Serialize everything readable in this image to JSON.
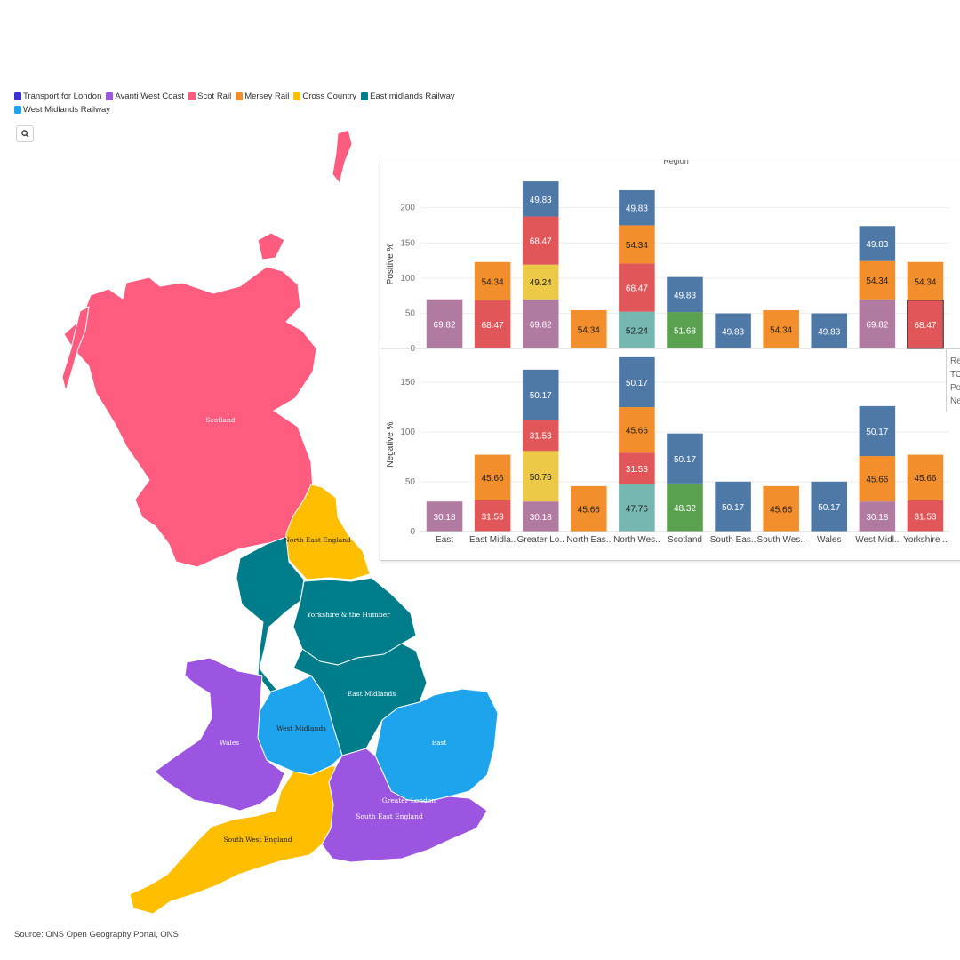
{
  "legend": [
    {
      "label": "Transport for London",
      "color": "#3b2fd9"
    },
    {
      "label": "Avanti West Coast",
      "color": "#9b55e0"
    },
    {
      "label": "Scot Rail",
      "color": "#ff5c7f"
    },
    {
      "label": "Mersey Rail",
      "color": "#f28e2b"
    },
    {
      "label": "Cross Country",
      "color": "#ffbf00"
    },
    {
      "label": "East midlands Railway",
      "color": "#007d8a"
    },
    {
      "label": "West Midlands Railway",
      "color": "#1ea4ec"
    }
  ],
  "map": {
    "region_labels": {
      "scotland": "Scotland",
      "north_east": "North East England",
      "yorkshire": "Yorkshire & the Humber",
      "east_midlands": "East Midlands",
      "west_midlands": "West Midlands",
      "wales": "Wales",
      "east": "East",
      "greater_london": "Greater London",
      "south_east": "South East England",
      "south_west": "South West England"
    },
    "colors": {
      "scotland": "#ff5c7f",
      "north_east": "#ffbf00",
      "north_west": "#007d8a",
      "yorkshire": "#007d8a",
      "east_midlands": "#007d8a",
      "west_midlands": "#1ea4ec",
      "wales": "#9b55e0",
      "east": "#1ea4ec",
      "south_east": "#9b55e0",
      "south_west": "#ffbf00"
    }
  },
  "source": "Source: ONS Open Geography Portal, ONS",
  "tooltip_lines": [
    "Re",
    "TO",
    "Po",
    "Ne"
  ],
  "chart_data": {
    "type": "bar",
    "stacked": true,
    "title": "Region",
    "categories": [
      "East",
      "East Midla..",
      "Greater Lo..",
      "North Eas..",
      "North Wes..",
      "Scotland",
      "South Eas..",
      "South Wes..",
      "Wales",
      "West Midl..",
      "Yorkshire .."
    ],
    "positive": {
      "ylabel": "Positive %",
      "ylim": [
        0,
        240
      ],
      "ticks": [
        0,
        50,
        100,
        150,
        200
      ],
      "stacks": [
        [
          {
            "v": 69.82,
            "c": "#b07aa1"
          }
        ],
        [
          {
            "v": 68.47,
            "c": "#e15759"
          },
          {
            "v": 54.34,
            "c": "#f28e2b"
          }
        ],
        [
          {
            "v": 69.82,
            "c": "#b07aa1"
          },
          {
            "v": 49.24,
            "c": "#edc948"
          },
          {
            "v": 68.47,
            "c": "#e15759"
          },
          {
            "v": 49.83,
            "c": "#4e79a7"
          }
        ],
        [
          {
            "v": 54.34,
            "c": "#f28e2b"
          }
        ],
        [
          {
            "v": 52.24,
            "c": "#76b7b2"
          },
          {
            "v": 68.47,
            "c": "#e15759"
          },
          {
            "v": 54.34,
            "c": "#f28e2b"
          },
          {
            "v": 49.83,
            "c": "#4e79a7"
          }
        ],
        [
          {
            "v": 51.68,
            "c": "#59a14f"
          },
          {
            "v": 49.83,
            "c": "#4e79a7"
          }
        ],
        [
          {
            "v": 49.83,
            "c": "#4e79a7"
          }
        ],
        [
          {
            "v": 54.34,
            "c": "#f28e2b"
          }
        ],
        [
          {
            "v": 49.83,
            "c": "#4e79a7"
          }
        ],
        [
          {
            "v": 69.82,
            "c": "#b07aa1"
          },
          {
            "v": 54.34,
            "c": "#f28e2b"
          },
          {
            "v": 49.83,
            "c": "#4e79a7"
          }
        ],
        [
          {
            "v": 68.47,
            "c": "#e15759"
          },
          {
            "v": 54.34,
            "c": "#f28e2b"
          }
        ]
      ]
    },
    "negative": {
      "ylabel": "Negative %",
      "ylim": [
        0,
        175
      ],
      "ticks": [
        0,
        50,
        100,
        150
      ],
      "stacks": [
        [
          {
            "v": 30.18,
            "c": "#b07aa1"
          }
        ],
        [
          {
            "v": 31.53,
            "c": "#e15759"
          },
          {
            "v": 45.66,
            "c": "#f28e2b"
          }
        ],
        [
          {
            "v": 30.18,
            "c": "#b07aa1"
          },
          {
            "v": 50.76,
            "c": "#edc948"
          },
          {
            "v": 31.53,
            "c": "#e15759"
          },
          {
            "v": 50.17,
            "c": "#4e79a7"
          }
        ],
        [
          {
            "v": 45.66,
            "c": "#f28e2b"
          }
        ],
        [
          {
            "v": 47.76,
            "c": "#76b7b2"
          },
          {
            "v": 31.53,
            "c": "#e15759"
          },
          {
            "v": 45.66,
            "c": "#f28e2b"
          },
          {
            "v": 50.17,
            "c": "#4e79a7"
          }
        ],
        [
          {
            "v": 48.32,
            "c": "#59a14f"
          },
          {
            "v": 50.17,
            "c": "#4e79a7"
          }
        ],
        [
          {
            "v": 50.17,
            "c": "#4e79a7"
          }
        ],
        [
          {
            "v": 45.66,
            "c": "#f28e2b"
          }
        ],
        [
          {
            "v": 50.17,
            "c": "#4e79a7"
          }
        ],
        [
          {
            "v": 30.18,
            "c": "#b07aa1"
          },
          {
            "v": 45.66,
            "c": "#f28e2b"
          },
          {
            "v": 50.17,
            "c": "#4e79a7"
          }
        ],
        [
          {
            "v": 31.53,
            "c": "#e15759"
          },
          {
            "v": 45.66,
            "c": "#f28e2b"
          }
        ]
      ]
    }
  }
}
